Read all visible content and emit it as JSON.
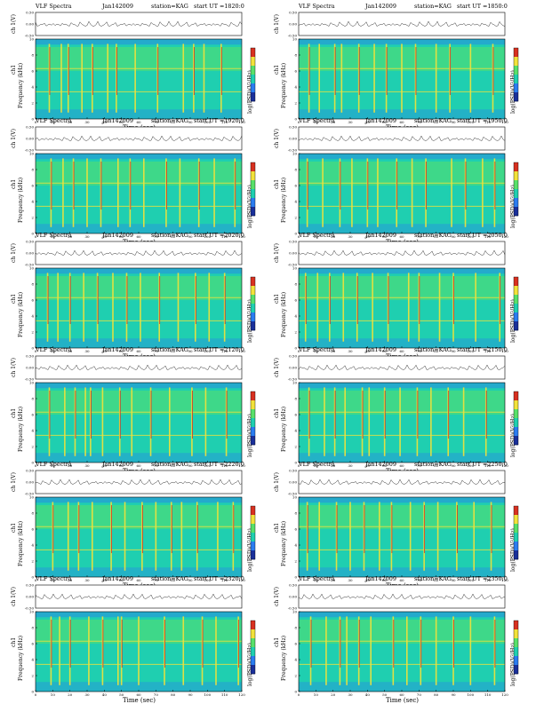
{
  "header": {
    "title": "VLF Spectra",
    "date": "Jan142009",
    "station": "station=KAG",
    "start_prefix": "start  UT  ="
  },
  "labels": {
    "channel_axis": "ch 1(V)",
    "channel_tag": "ch1",
    "freq_axis": "Frequency (kHz)",
    "time_axis": "Time (sec)",
    "colorbar": "log(PSD)(V²/Hz)"
  },
  "colors": {
    "background": "#1fcfb0",
    "low": "#2a7cf0",
    "mid": "#58e06a",
    "high": "#f2e23a",
    "peak": "#d83020"
  },
  "chart_data": [
    {
      "type": "heatmap",
      "start_ut": "1820:0",
      "xlim": [
        0,
        120
      ],
      "ylim": [
        0,
        10
      ],
      "vline_times": [
        8,
        15,
        19,
        27,
        33,
        42,
        47,
        58,
        71,
        86,
        92,
        98,
        108
      ],
      "whistler_band_khz": [
        6,
        9
      ]
    },
    {
      "type": "heatmap",
      "start_ut": "1850:0",
      "xlim": [
        0,
        120
      ],
      "ylim": [
        0,
        10
      ],
      "vline_times": [
        6,
        12,
        21,
        25,
        35,
        44,
        51,
        60,
        68,
        80,
        88,
        100,
        113
      ],
      "whistler_band_khz": [
        6,
        9
      ]
    },
    {
      "type": "heatmap",
      "start_ut": "1920:0",
      "xlim": [
        0,
        120
      ],
      "ylim": [
        0,
        10
      ],
      "vline_times": [
        9,
        16,
        22,
        30,
        38,
        48,
        55,
        63,
        76,
        84,
        95,
        104,
        116
      ],
      "whistler_band_khz": [
        6,
        9
      ]
    },
    {
      "type": "heatmap",
      "start_ut": "1950:0",
      "xlim": [
        0,
        120
      ],
      "ylim": [
        0,
        10
      ],
      "vline_times": [
        5,
        14,
        24,
        31,
        40,
        46,
        57,
        66,
        74,
        89,
        97,
        107,
        114
      ],
      "whistler_band_khz": [
        6,
        9
      ]
    },
    {
      "type": "heatmap",
      "start_ut": "2020:0",
      "xlim": [
        0,
        120
      ],
      "ylim": [
        0,
        10
      ],
      "vline_times": [
        7,
        13,
        20,
        28,
        36,
        45,
        53,
        61,
        72,
        83,
        93,
        101,
        110
      ],
      "whistler_band_khz": [
        6,
        9
      ]
    },
    {
      "type": "heatmap",
      "start_ut": "2050:0",
      "xlim": [
        0,
        120
      ],
      "ylim": [
        0,
        10
      ],
      "vline_times": [
        4,
        11,
        18,
        26,
        34,
        43,
        52,
        64,
        70,
        82,
        90,
        103,
        117
      ],
      "whistler_band_khz": [
        6,
        9
      ]
    },
    {
      "type": "heatmap",
      "start_ut": "2120:0",
      "xlim": [
        0,
        120
      ],
      "ylim": [
        0,
        10
      ],
      "vline_times": [
        8,
        17,
        23,
        29,
        32,
        39,
        49,
        56,
        67,
        78,
        91,
        99,
        111
      ],
      "whistler_band_khz": [
        6,
        9
      ]
    },
    {
      "type": "heatmap",
      "start_ut": "2150:0",
      "xlim": [
        0,
        120
      ],
      "ylim": [
        0,
        10
      ],
      "vline_times": [
        6,
        15,
        21,
        27,
        37,
        41,
        50,
        59,
        69,
        77,
        87,
        96,
        109
      ],
      "whistler_band_khz": [
        6,
        9
      ]
    },
    {
      "type": "heatmap",
      "start_ut": "2220:0",
      "xlim": [
        0,
        120
      ],
      "ylim": [
        0,
        10
      ],
      "vline_times": [
        10,
        19,
        25,
        33,
        44,
        52,
        62,
        70,
        79,
        85,
        94,
        106,
        115
      ],
      "whistler_band_khz": [
        6,
        9
      ]
    },
    {
      "type": "heatmap",
      "start_ut": "2250:0",
      "xlim": [
        0,
        120
      ],
      "ylim": [
        0,
        10
      ],
      "vline_times": [
        5,
        12,
        22,
        30,
        38,
        47,
        54,
        65,
        73,
        81,
        92,
        102,
        112
      ],
      "whistler_band_khz": [
        6,
        9
      ]
    },
    {
      "type": "heatmap",
      "start_ut": "2320:0",
      "xlim": [
        0,
        120
      ],
      "ylim": [
        0,
        10
      ],
      "vline_times": [
        9,
        14,
        20,
        31,
        39,
        48,
        50,
        60,
        75,
        86,
        97,
        105,
        118
      ],
      "whistler_band_khz": [
        6,
        9
      ]
    },
    {
      "type": "heatmap",
      "start_ut": "2350:0",
      "xlim": [
        0,
        120
      ],
      "ylim": [
        0,
        10
      ],
      "vline_times": [
        7,
        16,
        24,
        28,
        35,
        42,
        55,
        63,
        71,
        80,
        90,
        100,
        114
      ],
      "whistler_band_khz": [
        6,
        9
      ]
    }
  ]
}
